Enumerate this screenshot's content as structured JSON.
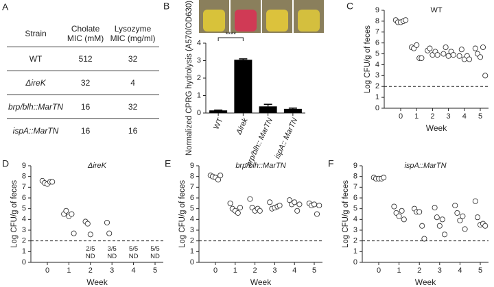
{
  "table": {
    "label": "A",
    "header": [
      "Strain",
      "Cholate MIC (mM)",
      "Lysozyme MIC (mg/ml)"
    ],
    "rows": [
      [
        "WT",
        512,
        32
      ],
      [
        "ΔireK",
        32,
        4
      ],
      [
        "brp/blh::MarTN",
        16,
        32
      ],
      [
        "ispA::MarTN",
        16,
        16
      ]
    ]
  },
  "chart_data": [
    {
      "type": "bar",
      "label": "B",
      "y_label": "Normalized CPRG hydrolysis (A570/OD630)",
      "categories": [
        "WT",
        "Δirek",
        "brp/blh:: MarTN",
        "ispA:: MarTN"
      ],
      "values": [
        0.15,
        3.05,
        0.38,
        0.24
      ],
      "errors": [
        0.02,
        0.05,
        0.12,
        0.04
      ],
      "color": "#000000",
      "ylim": [
        0,
        4
      ],
      "yticks": [
        0,
        1,
        2,
        3,
        4
      ],
      "annotation": "****"
    },
    {
      "type": "strip",
      "label": "C",
      "title": "WT",
      "x_label": "Week",
      "y_label": "Log CFU/g of feces",
      "categories": [
        "0",
        "1",
        "2",
        "3",
        "4",
        "5"
      ],
      "values": [
        [
          8.1,
          7.9,
          7.9,
          8.0,
          8.1
        ],
        [
          5.6,
          5.5,
          5.8,
          4.6,
          4.6
        ],
        [
          5.3,
          5.5,
          4.9,
          5.2,
          4.9
        ],
        [
          5.0,
          5.6,
          4.8,
          5.2,
          4.9
        ],
        [
          4.8,
          5.4,
          4.5,
          4.8,
          4.5
        ],
        [
          5.5,
          5.0,
          4.7,
          5.6,
          3.0
        ]
      ],
      "ylim": [
        0,
        9
      ],
      "yticks": [
        0,
        1,
        2,
        3,
        4,
        5,
        6,
        7,
        8,
        9
      ],
      "hline": 2
    },
    {
      "type": "strip",
      "label": "D",
      "title": "ΔireK",
      "x_label": "Week",
      "y_label": "Log CFU/g of feces",
      "categories": [
        "0",
        "1",
        "2",
        "3",
        "4",
        "5"
      ],
      "values": [
        [
          7.6,
          7.4,
          7.3,
          7.5,
          7.5
        ],
        [
          4.5,
          4.8,
          4.3,
          4.5,
          2.7
        ],
        [
          3.8,
          3.6,
          2.6
        ],
        [
          3.7,
          2.7
        ],
        [],
        []
      ],
      "annotations": [
        null,
        null,
        [
          "2/5",
          "ND"
        ],
        [
          "3/5",
          "ND"
        ],
        [
          "5/5",
          "ND"
        ],
        [
          "5/5",
          "ND"
        ]
      ],
      "ylim": [
        0,
        9
      ],
      "yticks": [
        0,
        1,
        2,
        3,
        4,
        5,
        6,
        7,
        8,
        9
      ],
      "hline": 2
    },
    {
      "type": "strip",
      "label": "E",
      "title": "brp/blh::MarTN",
      "x_label": "Week",
      "y_label": "Log CFU/g of feces",
      "categories": [
        "0",
        "1",
        "2",
        "3",
        "4",
        "5"
      ],
      "values": [
        [
          8.1,
          8.0,
          7.9,
          7.7,
          8.1
        ],
        [
          5.5,
          5.0,
          4.8,
          4.6,
          5.1
        ],
        [
          5.9,
          5.1,
          4.8,
          5.0,
          4.8
        ],
        [
          5.6,
          5.0,
          5.1,
          5.2,
          5.3
        ],
        [
          5.8,
          5.4,
          5.6,
          4.8,
          5.4
        ],
        [
          5.5,
          5.3,
          5.4,
          4.5,
          5.3
        ]
      ],
      "ylim": [
        0,
        9
      ],
      "yticks": [
        0,
        1,
        2,
        3,
        4,
        5,
        6,
        7,
        8,
        9
      ],
      "hline": 2
    },
    {
      "type": "strip",
      "label": "F",
      "title": "ispA::MarTN",
      "x_label": "Week",
      "y_label": "Log CFU/g of feces",
      "categories": [
        "0",
        "1",
        "2",
        "3",
        "4",
        "5"
      ],
      "values": [
        [
          7.9,
          7.8,
          7.8,
          7.8,
          7.9
        ],
        [
          5.2,
          4.6,
          4.3,
          4.8,
          4.0
        ],
        [
          5.0,
          4.7,
          4.7,
          3.4,
          2.2
        ],
        [
          5.1,
          4.2,
          3.4,
          4.0,
          2.6
        ],
        [
          5.3,
          4.6,
          3.9,
          4.3,
          3.1
        ],
        [
          5.7,
          4.2,
          3.5,
          3.6,
          3.4
        ]
      ],
      "ylim": [
        0,
        9
      ],
      "yticks": [
        0,
        1,
        2,
        3,
        4,
        5,
        6,
        7,
        8,
        9
      ],
      "hline": 2
    }
  ]
}
